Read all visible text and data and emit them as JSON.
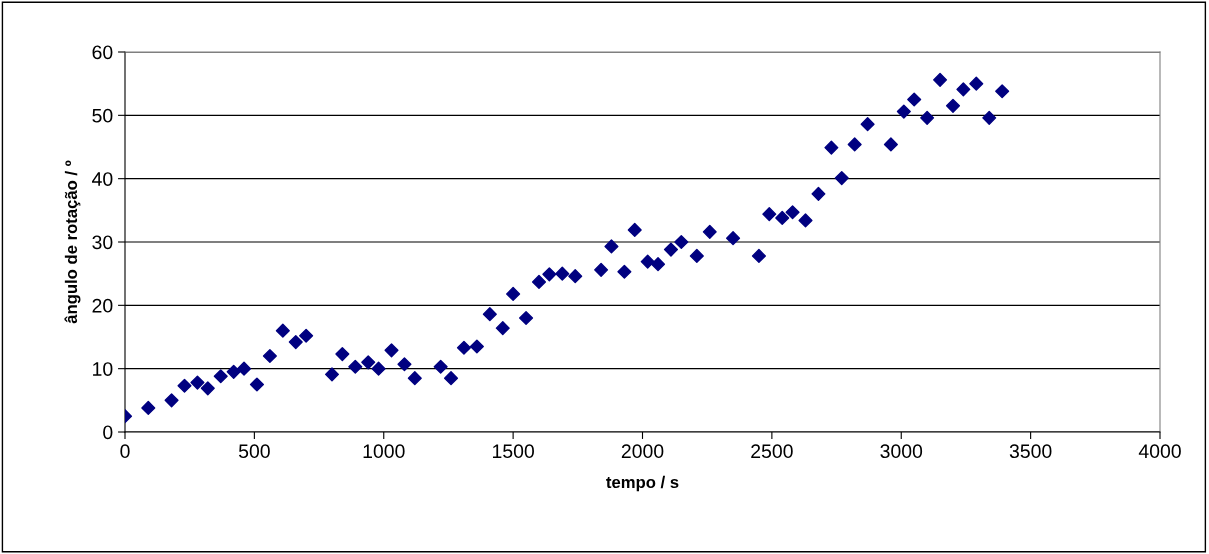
{
  "chart_data": {
    "type": "scatter",
    "xlabel": "tempo / s",
    "ylabel": "ângulo de rotação / º",
    "x": [
      0,
      90,
      180,
      230,
      280,
      320,
      370,
      420,
      460,
      510,
      560,
      610,
      660,
      700,
      800,
      840,
      890,
      940,
      980,
      1030,
      1080,
      1120,
      1220,
      1260,
      1310,
      1360,
      1410,
      1460,
      1500,
      1550,
      1600,
      1640,
      1690,
      1740,
      1840,
      1880,
      1930,
      1970,
      2020,
      2060,
      2110,
      2150,
      2210,
      2260,
      2350,
      2450,
      2490,
      2540,
      2580,
      2630,
      2680,
      2730,
      2770,
      2820,
      2870,
      2960,
      3010,
      3050,
      3100,
      3150,
      3200,
      3240,
      3290,
      3340,
      3390
    ],
    "series": [
      {
        "color": "#000080",
        "values": [
          2.5,
          3.8,
          5,
          7.3,
          7.8,
          6.9,
          8.8,
          9.5,
          10,
          7.5,
          12,
          16,
          14.2,
          15.2,
          9.1,
          12.3,
          10.3,
          11,
          10,
          12.9,
          10.7,
          8.5,
          10.3,
          8.5,
          13.3,
          13.5,
          18.6,
          16.4,
          21.8,
          18,
          23.7,
          24.9,
          25,
          24.6,
          25.6,
          29.3,
          25.3,
          31.9,
          26.9,
          26.5,
          28.8,
          30,
          27.8,
          31.6,
          30.6,
          27.8,
          34.4,
          33.8,
          34.7,
          33.4,
          37.6,
          44.9,
          40.1,
          45.4,
          48.6,
          45.4,
          50.6,
          52.5,
          49.6,
          55.6,
          51.5,
          54.1,
          55,
          49.6,
          53.8
        ]
      }
    ],
    "xlim": [
      0,
      4000
    ],
    "xticks": [
      0,
      500,
      1000,
      1500,
      2000,
      2500,
      3000,
      3500,
      4000
    ],
    "ylim": [
      0,
      60
    ],
    "yticks": [
      0,
      10,
      20,
      30,
      40,
      50,
      60
    ],
    "grid": "y",
    "marker": "diamond",
    "legend": false
  }
}
